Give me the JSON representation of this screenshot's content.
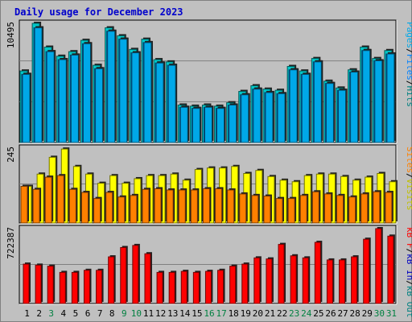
{
  "title": "Daily usage for December 2023",
  "colors": {
    "background": "#c0c0c0",
    "panel": "#c0c0c0",
    "pages": "#00a8e8",
    "files": "#0080ff",
    "hits": "#00c8c8",
    "sites": "#ff8000",
    "visits": "#ffff00",
    "kbin": "#ff0000",
    "kbout": "#0080ff",
    "weekday_label": "#000000",
    "weekend_label": "#008040"
  },
  "chart_data": [
    {
      "type": "bar",
      "name": "hits-files-pages",
      "ymax_label": "10495",
      "ylim": [
        0,
        10495
      ],
      "right_label": [
        {
          "text": "Pages",
          "color": "#00a8e8"
        },
        {
          "text": "/",
          "color": "#000000"
        },
        {
          "text": "Files",
          "color": "#0080ff"
        },
        {
          "text": "/",
          "color": "#000000"
        },
        {
          "text": "Hits",
          "color": "#008080"
        }
      ],
      "categories": [
        "1",
        "2",
        "3",
        "4",
        "5",
        "6",
        "7",
        "8",
        "9",
        "10",
        "11",
        "12",
        "13",
        "14",
        "15",
        "16",
        "17",
        "18",
        "19",
        "20",
        "21",
        "22",
        "23",
        "24",
        "25",
        "26",
        "27",
        "28",
        "29",
        "30",
        "31"
      ],
      "series": [
        {
          "name": "Hits",
          "values": [
            6300,
            10495,
            8400,
            7600,
            8000,
            9000,
            6800,
            10100,
            9400,
            8200,
            9100,
            7300,
            7100,
            3300,
            3200,
            3300,
            3200,
            3500,
            4500,
            5000,
            4700,
            4600,
            6700,
            6300,
            7400,
            5400,
            4800,
            6400,
            8400,
            7400,
            8100
          ]
        },
        {
          "name": "Files",
          "values": [
            6000,
            10100,
            8000,
            7300,
            7700,
            8700,
            6500,
            9800,
            9100,
            7900,
            8800,
            7000,
            6800,
            3100,
            3000,
            3100,
            3000,
            3300,
            4200,
            4700,
            4400,
            4300,
            6400,
            6000,
            7100,
            5200,
            4600,
            6200,
            8100,
            7200,
            7800
          ]
        },
        {
          "name": "Pages",
          "values": [
            6000,
            10100,
            8000,
            7300,
            7700,
            8700,
            6500,
            9800,
            9100,
            7900,
            8800,
            7000,
            6800,
            3100,
            3000,
            3100,
            3000,
            3300,
            4200,
            4700,
            4400,
            4300,
            6400,
            6000,
            7100,
            5200,
            4600,
            6200,
            8100,
            7200,
            7800
          ]
        }
      ]
    },
    {
      "type": "bar",
      "name": "visits-sites",
      "ymax_label": "245",
      "ylim": [
        0,
        245
      ],
      "right_label": [
        {
          "text": "Sites",
          "color": "#ff8000"
        },
        {
          "text": "/",
          "color": "#000000"
        },
        {
          "text": "Visits",
          "color": "#c0c000"
        }
      ],
      "categories": [
        "1",
        "2",
        "3",
        "4",
        "5",
        "6",
        "7",
        "8",
        "9",
        "10",
        "11",
        "12",
        "13",
        "14",
        "15",
        "16",
        "17",
        "18",
        "19",
        "20",
        "21",
        "22",
        "23",
        "24",
        "25",
        "26",
        "27",
        "28",
        "29",
        "30",
        "31"
      ],
      "series": [
        {
          "name": "Visits",
          "values": [
            120,
            160,
            215,
            242,
            185,
            160,
            130,
            155,
            130,
            145,
            155,
            155,
            160,
            140,
            175,
            180,
            180,
            185,
            162,
            172,
            152,
            140,
            135,
            155,
            160,
            160,
            152,
            140,
            150,
            162,
            135
          ]
        },
        {
          "name": "Sites",
          "values": [
            120,
            110,
            150,
            155,
            110,
            100,
            80,
            100,
            85,
            90,
            110,
            112,
            108,
            108,
            108,
            112,
            112,
            108,
            95,
            90,
            88,
            80,
            80,
            90,
            102,
            95,
            90,
            85,
            95,
            102,
            100
          ]
        }
      ]
    },
    {
      "type": "bar",
      "name": "kb-in-out",
      "ymax_label": "722387",
      "ylim": [
        0,
        722387
      ],
      "right_label": [
        {
          "text": "kB F",
          "color": "#ff0000"
        },
        {
          "text": "/",
          "color": "#000000"
        },
        {
          "text": "kB In",
          "color": "#0000c0"
        },
        {
          "text": "/",
          "color": "#000000"
        },
        {
          "text": "kB Out",
          "color": "#008080"
        }
      ],
      "categories": [
        "1",
        "2",
        "3",
        "4",
        "5",
        "6",
        "7",
        "8",
        "9",
        "10",
        "11",
        "12",
        "13",
        "14",
        "15",
        "16",
        "17",
        "18",
        "19",
        "20",
        "21",
        "22",
        "23",
        "24",
        "25",
        "26",
        "27",
        "28",
        "29",
        "30",
        "31"
      ],
      "series": [
        {
          "name": "kB F",
          "values": [
            380000,
            370000,
            360000,
            300000,
            300000,
            320000,
            320000,
            450000,
            540000,
            560000,
            480000,
            300000,
            300000,
            310000,
            300000,
            310000,
            320000,
            360000,
            380000,
            440000,
            430000,
            570000,
            460000,
            440000,
            590000,
            420000,
            420000,
            450000,
            620000,
            722387,
            650000
          ]
        }
      ]
    }
  ],
  "x_labels": [
    {
      "text": "1",
      "weekend": false
    },
    {
      "text": "2",
      "weekend": false
    },
    {
      "text": "3",
      "weekend": true
    },
    {
      "text": "4",
      "weekend": false
    },
    {
      "text": "5",
      "weekend": false
    },
    {
      "text": "6",
      "weekend": false
    },
    {
      "text": "7",
      "weekend": false
    },
    {
      "text": "8",
      "weekend": false
    },
    {
      "text": "9",
      "weekend": true
    },
    {
      "text": "10",
      "weekend": true
    },
    {
      "text": "11",
      "weekend": false
    },
    {
      "text": "12",
      "weekend": false
    },
    {
      "text": "13",
      "weekend": false
    },
    {
      "text": "14",
      "weekend": false
    },
    {
      "text": "15",
      "weekend": false
    },
    {
      "text": "16",
      "weekend": true
    },
    {
      "text": "17",
      "weekend": true
    },
    {
      "text": "18",
      "weekend": false
    },
    {
      "text": "19",
      "weekend": false
    },
    {
      "text": "20",
      "weekend": false
    },
    {
      "text": "21",
      "weekend": false
    },
    {
      "text": "22",
      "weekend": false
    },
    {
      "text": "23",
      "weekend": true
    },
    {
      "text": "24",
      "weekend": true
    },
    {
      "text": "25",
      "weekend": false
    },
    {
      "text": "26",
      "weekend": false
    },
    {
      "text": "27",
      "weekend": false
    },
    {
      "text": "28",
      "weekend": false
    },
    {
      "text": "29",
      "weekend": false
    },
    {
      "text": "30",
      "weekend": true
    },
    {
      "text": "31",
      "weekend": true
    }
  ]
}
